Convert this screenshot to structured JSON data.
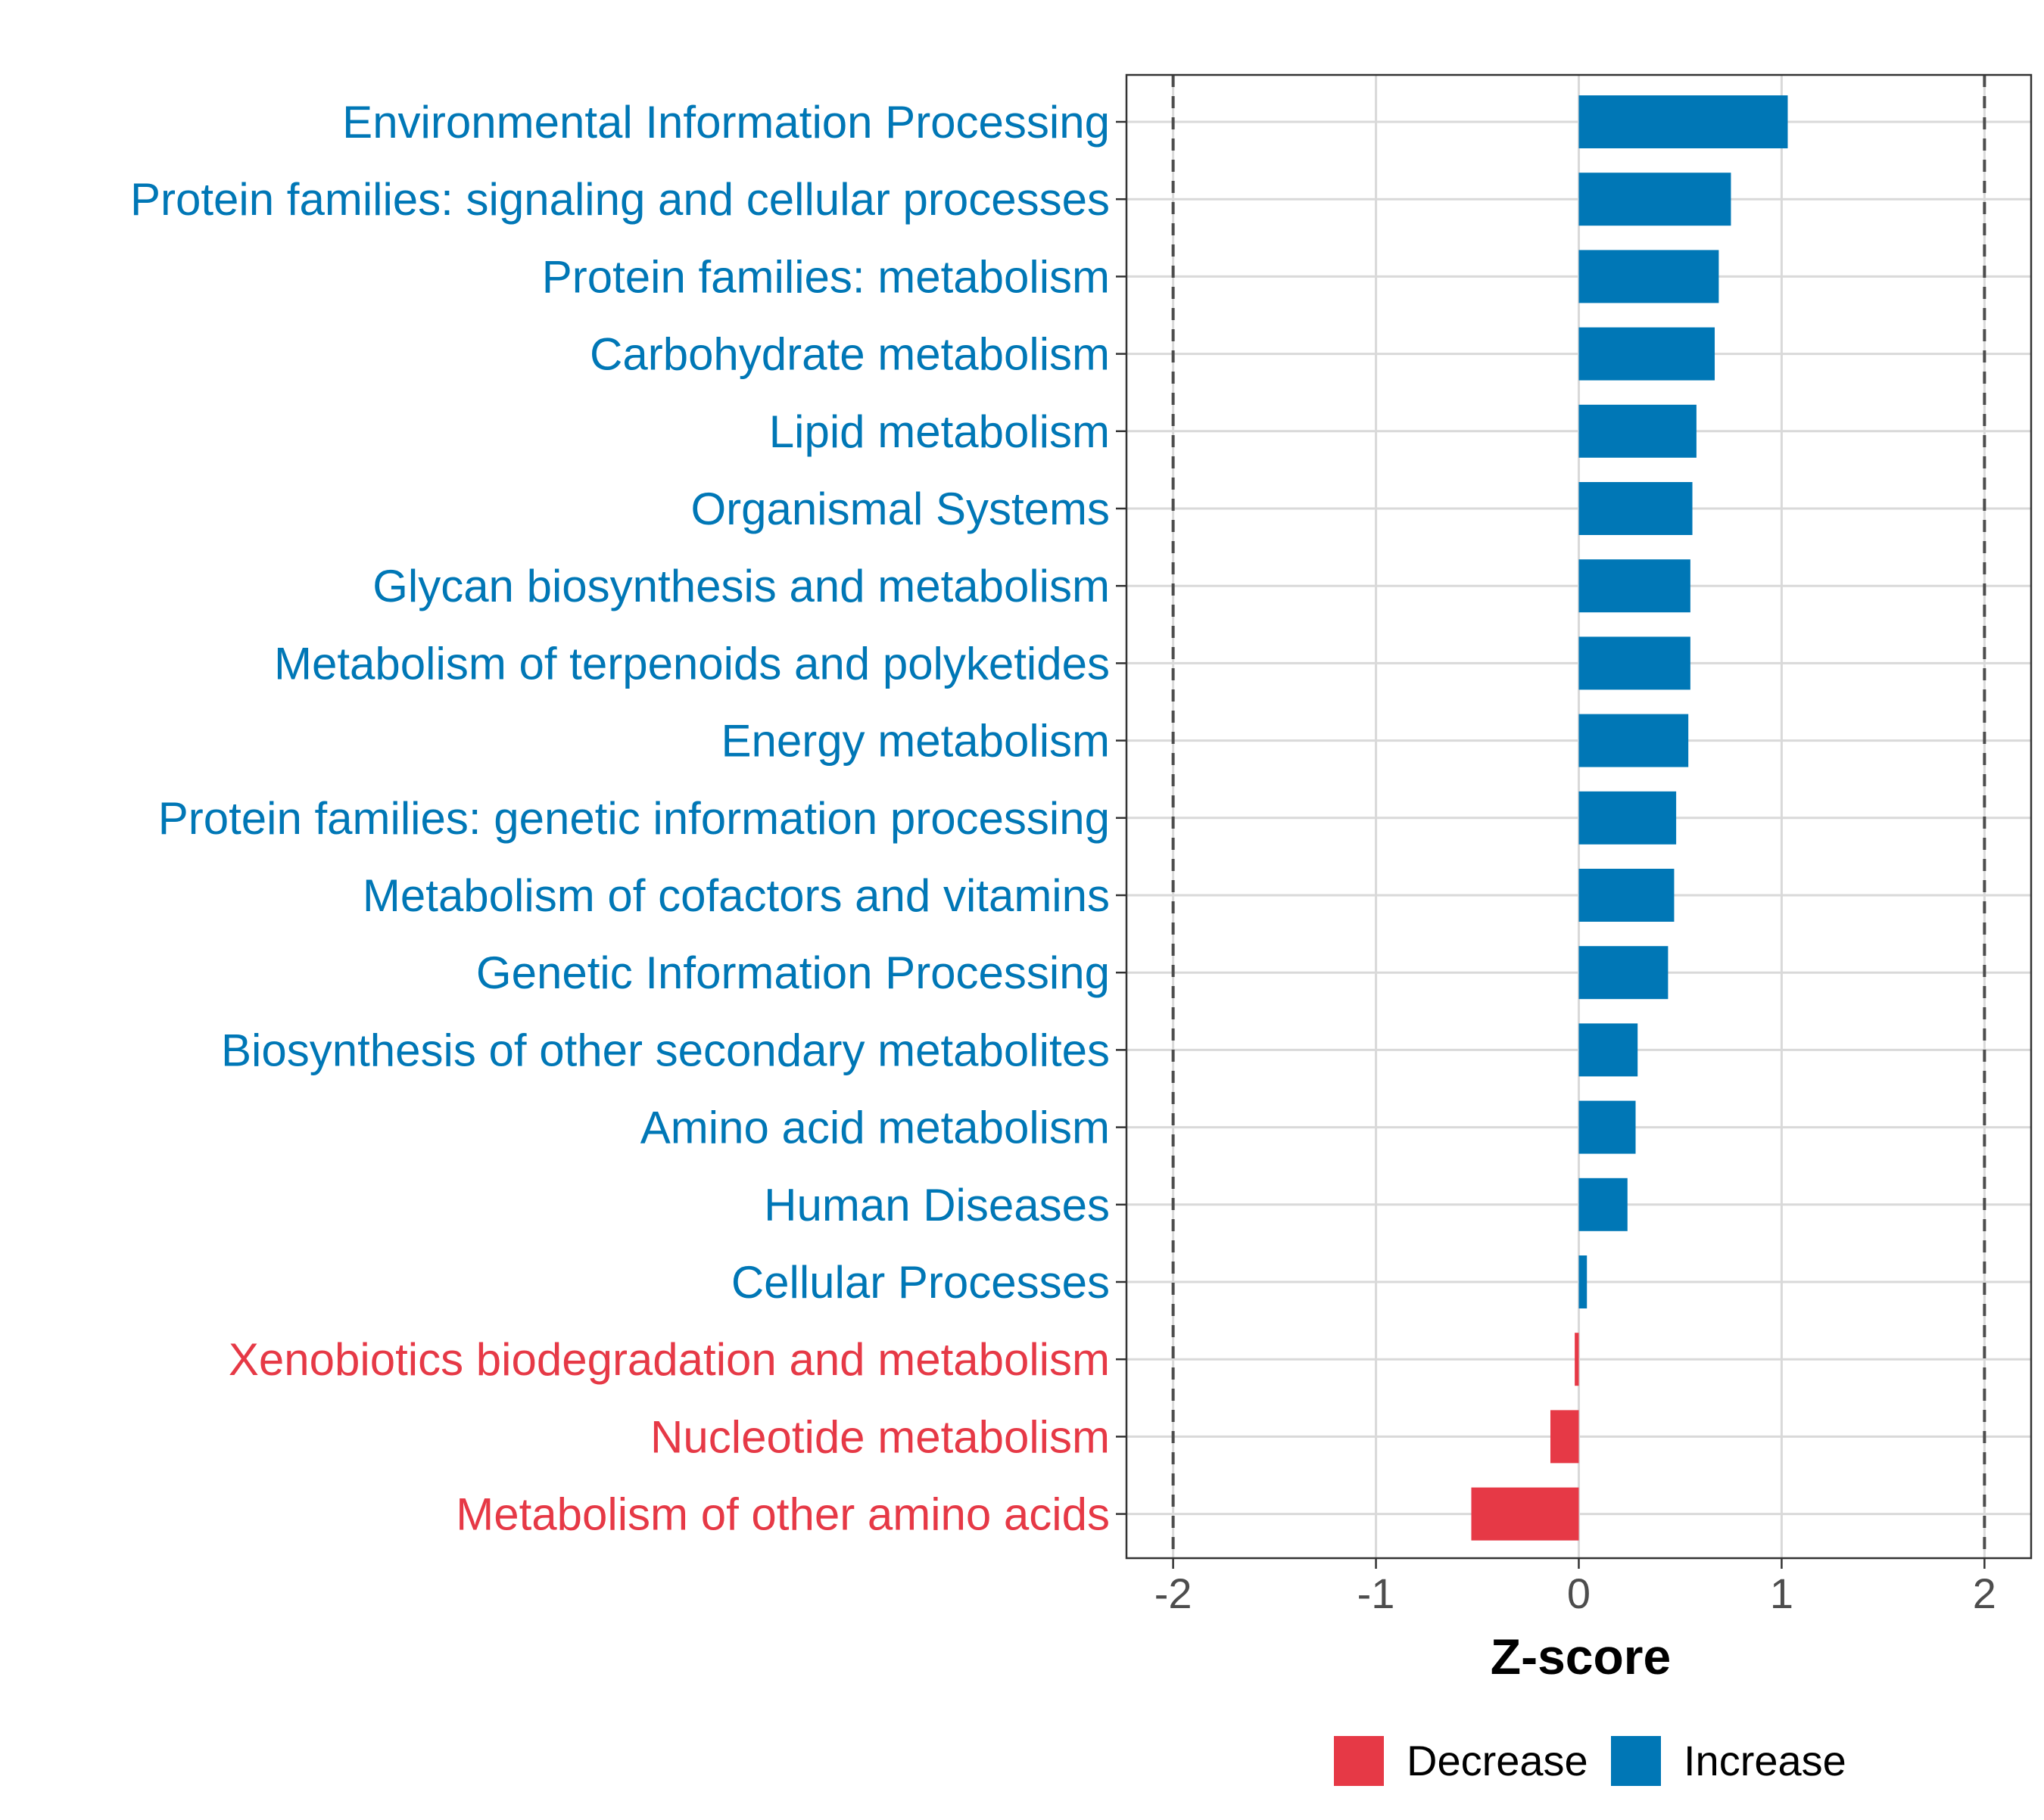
{
  "chart_data": {
    "type": "bar",
    "orientation": "horizontal",
    "xlabel": "Z-score",
    "ylabel": "",
    "xlim": [
      -2.23,
      2.23
    ],
    "xticks": [
      -2,
      -1,
      0,
      1,
      2
    ],
    "xtick_labels": [
      "-2",
      "-1",
      "0",
      "1",
      "2"
    ],
    "reference_lines": [
      -2,
      2
    ],
    "grid": true,
    "legend_position": "bottom",
    "categories": [
      "Environmental Information Processing",
      "Protein families: signaling and cellular processes",
      "Protein families: metabolism",
      "Carbohydrate metabolism",
      "Lipid metabolism",
      "Organismal Systems",
      "Glycan biosynthesis and metabolism",
      "Metabolism of terpenoids and polyketides",
      "Energy metabolism",
      "Protein families: genetic information processing",
      "Metabolism of cofactors and vitamins",
      "Genetic Information Processing",
      "Biosynthesis of other secondary metabolites",
      "Amino acid metabolism",
      "Human Diseases",
      "Cellular Processes",
      "Xenobiotics biodegradation and metabolism",
      "Nucleotide metabolism",
      "Metabolism of other amino acids"
    ],
    "values": [
      1.03,
      0.75,
      0.69,
      0.67,
      0.58,
      0.56,
      0.55,
      0.55,
      0.54,
      0.48,
      0.47,
      0.44,
      0.29,
      0.28,
      0.24,
      0.04,
      -0.02,
      -0.14,
      -0.53
    ],
    "legend": [
      {
        "label": "Decrease",
        "color": "#E63946"
      },
      {
        "label": "Increase",
        "color": "#0077B6"
      }
    ]
  },
  "colors": {
    "increase": "#0077B6",
    "decrease": "#E63946",
    "grid": "#D9D9D9",
    "reference_line": "#4D4D4D",
    "panel_border": "#333333"
  }
}
